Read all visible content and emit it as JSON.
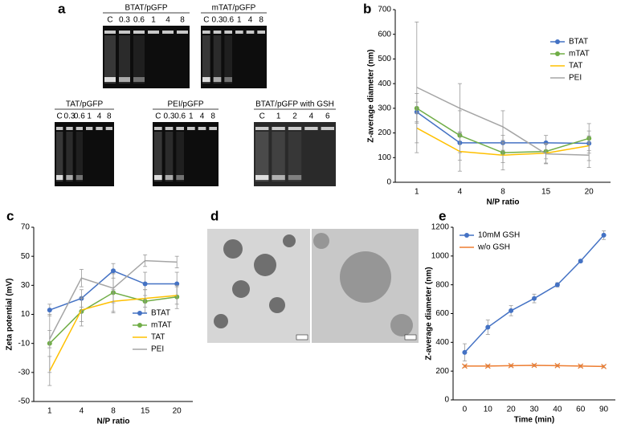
{
  "panel_labels": [
    "a",
    "b",
    "c",
    "d",
    "e"
  ],
  "gels": [
    {
      "title": "BTAT/pGFP",
      "lanes": [
        "C",
        "0.3",
        "0.6",
        "1",
        "4",
        "8"
      ]
    },
    {
      "title": "mTAT/pGFP",
      "lanes": [
        "C",
        "0.3",
        "0.6",
        "1",
        "4",
        "8"
      ]
    },
    {
      "title": "TAT/pGFP",
      "lanes": [
        "C",
        "0.3",
        "0.6",
        "1",
        "4",
        "8"
      ]
    },
    {
      "title": "PEI/pGFP",
      "lanes": [
        "C",
        "0.3",
        "0.6",
        "1",
        "4",
        "8"
      ]
    },
    {
      "title": "BTAT/pGFP with GSH",
      "lanes": [
        "C",
        "1",
        "2",
        "4",
        "6"
      ]
    }
  ],
  "chart_data": [
    {
      "type": "line",
      "x_label": "N/P ratio",
      "y_label": "Z-average diameter (nm)",
      "categories": [
        "1",
        "4",
        "8",
        "15",
        "20"
      ],
      "ylim": [
        0,
        700
      ],
      "yticks": [
        0,
        100,
        200,
        300,
        400,
        500,
        600,
        700
      ],
      "grid": false,
      "legend": "upper right",
      "series": [
        {
          "name": "BTAT",
          "color": "#4472c4",
          "marker": "circle",
          "values": [
            285,
            160,
            160,
            160,
            158
          ],
          "errors": [
            40,
            40,
            30,
            30,
            30
          ]
        },
        {
          "name": "mTAT",
          "color": "#70ad47",
          "marker": "circle",
          "values": [
            300,
            190,
            120,
            125,
            178
          ],
          "errors": [
            60,
            100,
            40,
            30,
            60
          ]
        },
        {
          "name": "TAT",
          "color": "#ffc000",
          "marker": "none",
          "values": [
            220,
            125,
            110,
            118,
            148
          ],
          "errors": [
            60,
            80,
            60,
            40,
            60
          ]
        },
        {
          "name": "PEI",
          "color": "#a5a5a5",
          "marker": "none",
          "values": [
            385,
            300,
            225,
            115,
            110
          ],
          "errors": [
            265,
            100,
            65,
            40,
            50
          ]
        }
      ]
    },
    {
      "type": "line",
      "x_label": "N/P ratio",
      "y_label": "Zeta potential (mV)",
      "categories": [
        "1",
        "4",
        "8",
        "15",
        "20"
      ],
      "ylim": [
        -50,
        70
      ],
      "yticks": [
        -50,
        -30,
        -10,
        10,
        30,
        50,
        70
      ],
      "grid": false,
      "legend": "lower right",
      "series": [
        {
          "name": "BTAT",
          "color": "#4472c4",
          "marker": "circle",
          "values": [
            13,
            21,
            40,
            31,
            31
          ],
          "errors": [
            4,
            6,
            5,
            8,
            8
          ]
        },
        {
          "name": "mTAT",
          "color": "#70ad47",
          "marker": "circle",
          "values": [
            -10,
            12,
            25,
            19,
            22
          ],
          "errors": [
            20,
            10,
            13,
            8,
            8
          ]
        },
        {
          "name": "TAT",
          "color": "#ffc000",
          "marker": "none",
          "values": [
            -29,
            13,
            19,
            21,
            23
          ],
          "errors": [
            10,
            8,
            8,
            6,
            6
          ]
        },
        {
          "name": "PEI",
          "color": "#a5a5a5",
          "marker": "none",
          "values": [
            -7,
            35,
            28,
            47,
            46
          ],
          "errors": [
            6,
            6,
            10,
            4,
            4
          ]
        }
      ]
    },
    {
      "type": "line",
      "x_label": "Time (min)",
      "y_label": "Z-average diameter (nm)",
      "categories": [
        "0",
        "10",
        "20",
        "30",
        "40",
        "60",
        "90"
      ],
      "ylim": [
        0,
        1200
      ],
      "yticks": [
        0,
        200,
        400,
        600,
        800,
        1000,
        1200
      ],
      "grid": false,
      "legend": "upper left",
      "series": [
        {
          "name": "10mM GSH",
          "color": "#4472c4",
          "marker": "circle",
          "values": [
            330,
            505,
            620,
            705,
            800,
            965,
            1145
          ],
          "errors": [
            60,
            50,
            35,
            30,
            15,
            10,
            30
          ]
        },
        {
          "name": "w/o GSH",
          "color": "#ed7d31",
          "marker": "x",
          "values": [
            235,
            235,
            238,
            240,
            238,
            235,
            232
          ],
          "errors": [
            8,
            8,
            8,
            8,
            8,
            8,
            8
          ]
        }
      ]
    }
  ]
}
